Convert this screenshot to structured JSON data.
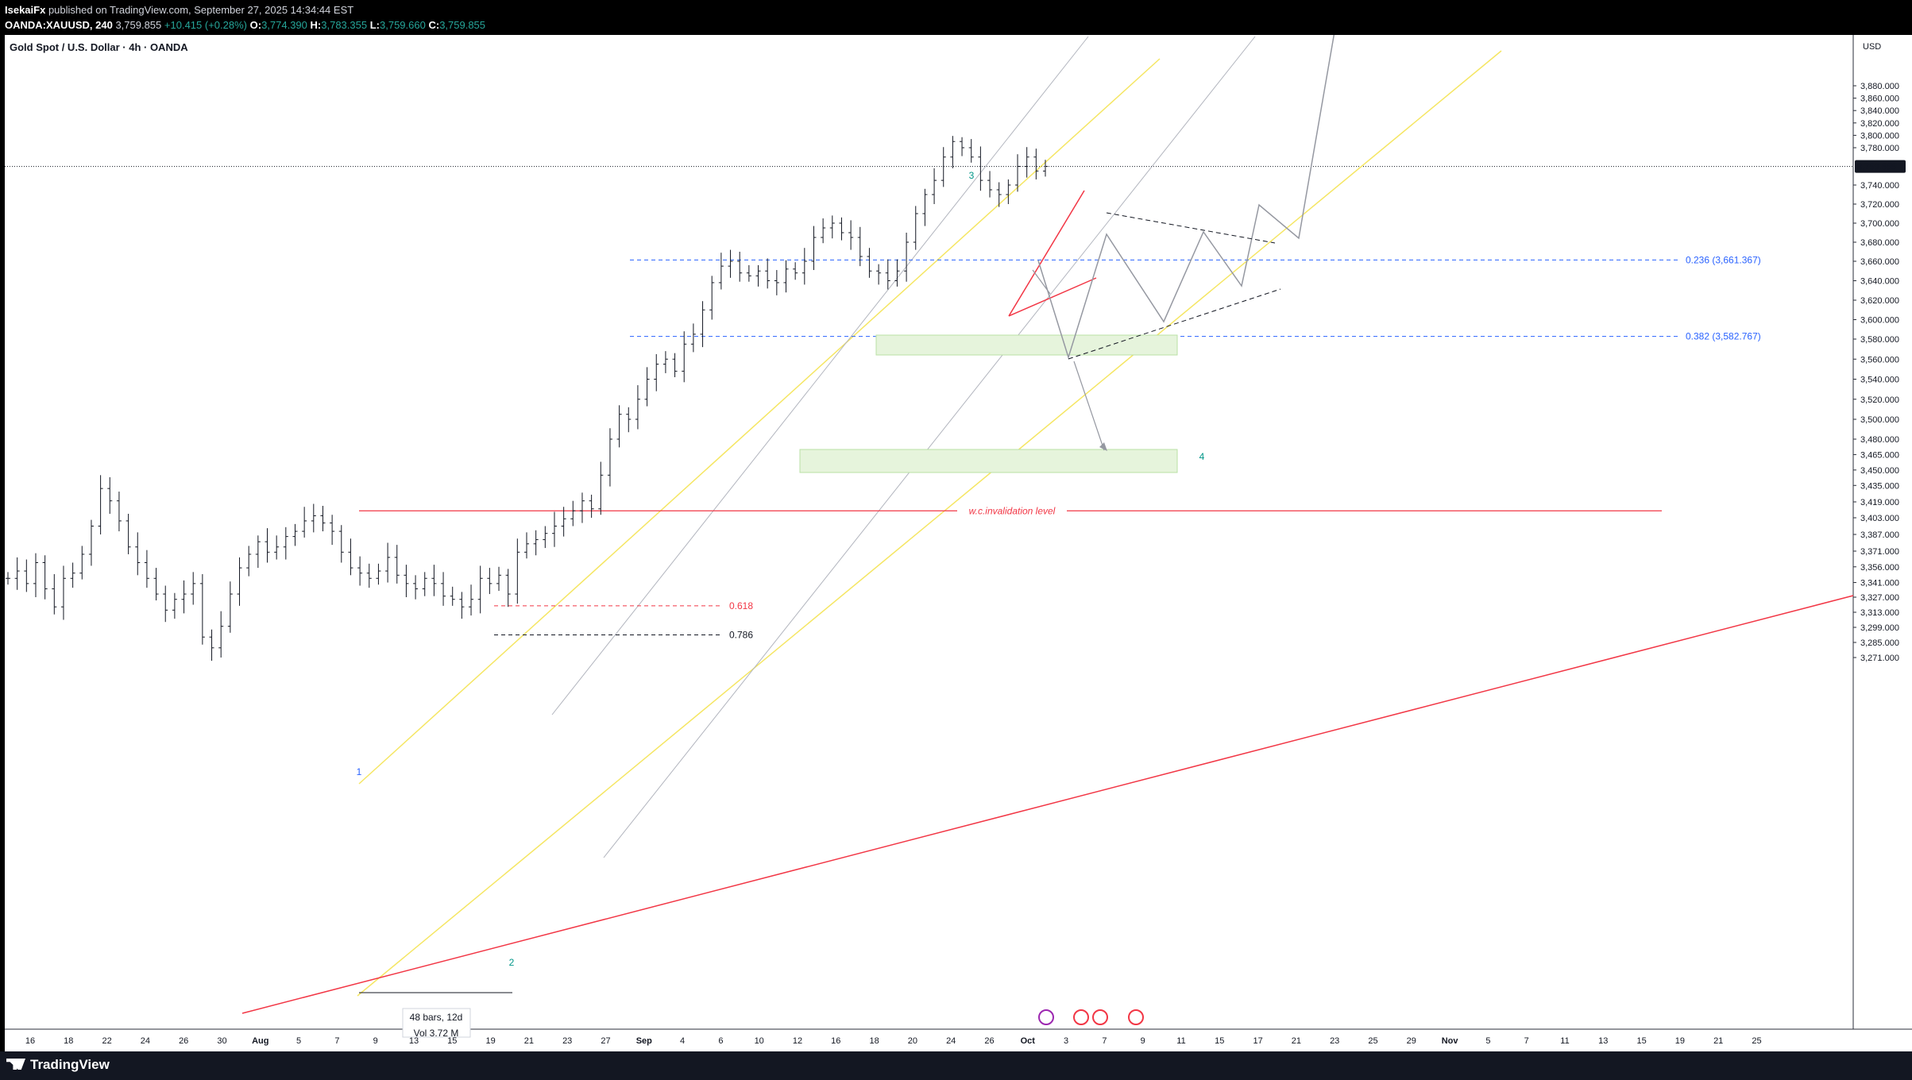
{
  "header": {
    "publisher": "IsekaiFx",
    "published_text": " published on TradingView.com, September 27, 2025 14:34:44 EST",
    "symbol": "OANDA:XAUUSD, 240",
    "last": "3,759.855",
    "change": "+10.415 (+0.28%)",
    "o_label": "O:",
    "o": "3,774.390",
    "h_label": "H:",
    "h": "3,783.355",
    "l_label": "L:",
    "l": "3,759.660",
    "c_label": "C:",
    "c": "3,759.855"
  },
  "chart_title": "Gold Spot / U.S. Dollar · 4h · OANDA",
  "footer": {
    "brand": "TradingView"
  },
  "chart_data": {
    "type": "candlestick",
    "currency": "USD",
    "price_axis_ticks": [
      "3,880.000",
      "3,860.000",
      "3,840.000",
      "3,820.000",
      "3,800.000",
      "3,780.000",
      "3,740.000",
      "3,720.000",
      "3,700.000",
      "3,680.000",
      "3,660.000",
      "3,640.000",
      "3,620.000",
      "3,600.000",
      "3,580.000",
      "3,560.000",
      "3,540.000",
      "3,520.000",
      "3,500.000",
      "3,480.000",
      "3,465.000",
      "3,450.000",
      "3,435.000",
      "3,419.000",
      "3,403.000",
      "3,387.000",
      "3,371.000",
      "3,356.000",
      "3,341.000",
      "3,327.000",
      "3,313.000",
      "3,299.000",
      "3,285.000",
      "3,271.000"
    ],
    "price_axis_values": [
      3880,
      3860,
      3840,
      3820,
      3800,
      3780,
      3740,
      3720,
      3700,
      3680,
      3660,
      3640,
      3620,
      3600,
      3580,
      3560,
      3540,
      3520,
      3500,
      3480,
      3465,
      3450,
      3435,
      3419,
      3403,
      3387,
      3371,
      3356,
      3341,
      3327,
      3313,
      3299,
      3285,
      3271
    ],
    "time_axis_ticks": [
      "16",
      "18",
      "22",
      "24",
      "26",
      "30",
      "Aug",
      "5",
      "7",
      "9",
      "13",
      "15",
      "19",
      "21",
      "23",
      "27",
      "Sep",
      "4",
      "6",
      "10",
      "12",
      "16",
      "18",
      "20",
      "24",
      "26",
      "Oct",
      "3",
      "7",
      "9",
      "11",
      "15",
      "17",
      "21",
      "23",
      "25",
      "29",
      "Nov",
      "5",
      "7",
      "11",
      "13",
      "15",
      "19",
      "21",
      "25"
    ],
    "current_price_label": "3,759.855",
    "current_price": 3759.855,
    "fib_levels": [
      {
        "label": "0.236 (3,661.367)",
        "price": 3661.367
      },
      {
        "label": "0.382 (3,582.767)",
        "price": 3582.767
      },
      {
        "label": "0.618",
        "price": 3319
      },
      {
        "label": "0.786",
        "price": 3292
      }
    ],
    "invalidation_label": "w.c.invalidation level",
    "invalidation_price": 3410,
    "wave_labels": [
      "1",
      "2",
      "3",
      "4"
    ],
    "measure_bars": "48 bars, 12d",
    "measure_vol": "Vol 3.72 M",
    "ohlc_path": [
      3345,
      3352,
      3340,
      3360,
      3335,
      3318,
      3345,
      3350,
      3368,
      3395,
      3432,
      3420,
      3400,
      3375,
      3360,
      3345,
      3330,
      3315,
      3325,
      3330,
      3340,
      3290,
      3280,
      3300,
      3330,
      3355,
      3368,
      3380,
      3370,
      3375,
      3385,
      3390,
      3400,
      3405,
      3398,
      3390,
      3370,
      3355,
      3350,
      3345,
      3352,
      3365,
      3348,
      3340,
      3335,
      3345,
      3340,
      3328,
      3325,
      3318,
      3325,
      3345,
      3340,
      3348,
      3330,
      3370,
      3378,
      3382,
      3388,
      3395,
      3402,
      3410,
      3420,
      3412,
      3445,
      3480,
      3505,
      3500,
      3520,
      3540,
      3555,
      3560,
      3548,
      3575,
      3585,
      3610,
      3638,
      3655,
      3660,
      3648,
      3645,
      3650,
      3640,
      3638,
      3652,
      3648,
      3660,
      3685,
      3695,
      3700,
      3690,
      3685,
      3665,
      3650,
      3648,
      3640,
      3650,
      3680,
      3710,
      3730,
      3745,
      3770,
      3790,
      3780,
      3770,
      3745,
      3735,
      3730,
      3740,
      3760,
      3770,
      3755,
      3760
    ]
  }
}
